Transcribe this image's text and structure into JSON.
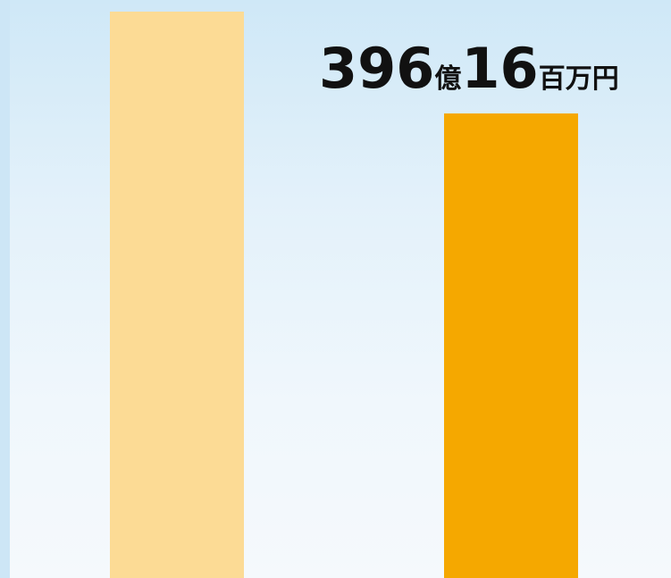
{
  "chart_data": {
    "type": "bar",
    "bars": [
      {
        "value": 1.0,
        "color": "#fcdb95"
      },
      {
        "value": 0.82,
        "color": "#f5a800"
      }
    ],
    "value_label": {
      "parts": [
        {
          "text": "396",
          "size": "big"
        },
        {
          "text": "億",
          "size": "small"
        },
        {
          "text": "16",
          "size": "big"
        },
        {
          "text": "百万円",
          "size": "small"
        }
      ]
    }
  }
}
